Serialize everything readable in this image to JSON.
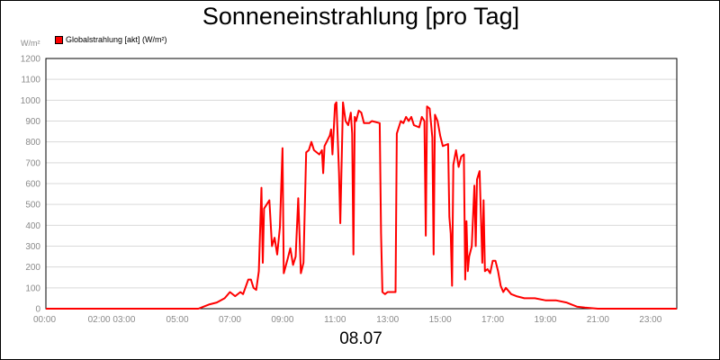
{
  "chart_data": {
    "type": "line",
    "title": "Sonneneinstrahlung [pro Tag]",
    "ylabel": "W/m²",
    "xlabel": "08.07",
    "ylim": [
      0,
      1200
    ],
    "xlim": [
      0,
      24
    ],
    "y_ticks": [
      0,
      100,
      200,
      300,
      400,
      500,
      600,
      700,
      800,
      900,
      1000,
      1100,
      1200
    ],
    "x_ticks": [
      {
        "x": 0,
        "label": "00:00"
      },
      {
        "x": 2.5,
        "label": "02:00 03:00"
      },
      {
        "x": 5,
        "label": "05:00"
      },
      {
        "x": 7,
        "label": "07:00"
      },
      {
        "x": 9,
        "label": "09:00"
      },
      {
        "x": 11,
        "label": "11:00"
      },
      {
        "x": 13,
        "label": "13:00"
      },
      {
        "x": 15,
        "label": "15:00"
      },
      {
        "x": 17,
        "label": "17:00"
      },
      {
        "x": 19,
        "label": "19:00"
      },
      {
        "x": 21,
        "label": "21:00"
      },
      {
        "x": 23,
        "label": "23:00"
      }
    ],
    "grid": true,
    "legend_position": "top-left",
    "series": [
      {
        "name": "Globalstrahlung [akt] (W/m²)",
        "color": "#ff0000",
        "points": [
          [
            0.0,
            0
          ],
          [
            5.8,
            0
          ],
          [
            6.0,
            10
          ],
          [
            6.2,
            20
          ],
          [
            6.5,
            30
          ],
          [
            6.8,
            50
          ],
          [
            7.0,
            80
          ],
          [
            7.2,
            60
          ],
          [
            7.4,
            80
          ],
          [
            7.5,
            70
          ],
          [
            7.7,
            140
          ],
          [
            7.8,
            140
          ],
          [
            7.9,
            100
          ],
          [
            8.0,
            90
          ],
          [
            8.1,
            180
          ],
          [
            8.2,
            580
          ],
          [
            8.25,
            220
          ],
          [
            8.3,
            480
          ],
          [
            8.5,
            520
          ],
          [
            8.6,
            300
          ],
          [
            8.7,
            340
          ],
          [
            8.8,
            260
          ],
          [
            8.9,
            390
          ],
          [
            9.0,
            770
          ],
          [
            9.05,
            170
          ],
          [
            9.2,
            240
          ],
          [
            9.3,
            290
          ],
          [
            9.4,
            210
          ],
          [
            9.5,
            250
          ],
          [
            9.6,
            530
          ],
          [
            9.7,
            170
          ],
          [
            9.8,
            220
          ],
          [
            9.9,
            750
          ],
          [
            10.0,
            760
          ],
          [
            10.1,
            800
          ],
          [
            10.2,
            760
          ],
          [
            10.4,
            740
          ],
          [
            10.5,
            760
          ],
          [
            10.55,
            650
          ],
          [
            10.6,
            780
          ],
          [
            10.8,
            830
          ],
          [
            10.85,
            860
          ],
          [
            10.9,
            740
          ],
          [
            11.0,
            980
          ],
          [
            11.05,
            990
          ],
          [
            11.15,
            650
          ],
          [
            11.2,
            410
          ],
          [
            11.3,
            990
          ],
          [
            11.4,
            900
          ],
          [
            11.5,
            880
          ],
          [
            11.6,
            940
          ],
          [
            11.65,
            840
          ],
          [
            11.7,
            260
          ],
          [
            11.75,
            920
          ],
          [
            11.8,
            900
          ],
          [
            11.9,
            950
          ],
          [
            12.0,
            940
          ],
          [
            12.1,
            890
          ],
          [
            12.3,
            890
          ],
          [
            12.4,
            900
          ],
          [
            12.7,
            890
          ],
          [
            12.75,
            360
          ],
          [
            12.8,
            80
          ],
          [
            12.9,
            70
          ],
          [
            13.0,
            80
          ],
          [
            13.3,
            80
          ],
          [
            13.35,
            840
          ],
          [
            13.5,
            900
          ],
          [
            13.6,
            890
          ],
          [
            13.7,
            920
          ],
          [
            13.8,
            900
          ],
          [
            13.9,
            920
          ],
          [
            14.0,
            880
          ],
          [
            14.2,
            870
          ],
          [
            14.3,
            920
          ],
          [
            14.4,
            900
          ],
          [
            14.45,
            350
          ],
          [
            14.5,
            970
          ],
          [
            14.6,
            960
          ],
          [
            14.7,
            820
          ],
          [
            14.75,
            260
          ],
          [
            14.8,
            930
          ],
          [
            14.9,
            900
          ],
          [
            15.0,
            830
          ],
          [
            15.1,
            780
          ],
          [
            15.3,
            790
          ],
          [
            15.35,
            440
          ],
          [
            15.4,
            360
          ],
          [
            15.45,
            110
          ],
          [
            15.5,
            690
          ],
          [
            15.6,
            760
          ],
          [
            15.7,
            680
          ],
          [
            15.8,
            730
          ],
          [
            15.9,
            740
          ],
          [
            15.95,
            140
          ],
          [
            16.0,
            420
          ],
          [
            16.05,
            180
          ],
          [
            16.1,
            250
          ],
          [
            16.2,
            300
          ],
          [
            16.3,
            590
          ],
          [
            16.35,
            300
          ],
          [
            16.4,
            620
          ],
          [
            16.5,
            660
          ],
          [
            16.6,
            220
          ],
          [
            16.65,
            520
          ],
          [
            16.7,
            180
          ],
          [
            16.8,
            190
          ],
          [
            16.9,
            170
          ],
          [
            17.0,
            230
          ],
          [
            17.1,
            230
          ],
          [
            17.2,
            180
          ],
          [
            17.3,
            110
          ],
          [
            17.4,
            80
          ],
          [
            17.5,
            100
          ],
          [
            17.7,
            70
          ],
          [
            17.9,
            60
          ],
          [
            18.2,
            50
          ],
          [
            18.6,
            50
          ],
          [
            19.0,
            40
          ],
          [
            19.4,
            40
          ],
          [
            19.8,
            30
          ],
          [
            20.0,
            20
          ],
          [
            20.2,
            10
          ],
          [
            20.5,
            5
          ],
          [
            21.0,
            0
          ],
          [
            24.0,
            0
          ]
        ]
      }
    ]
  }
}
